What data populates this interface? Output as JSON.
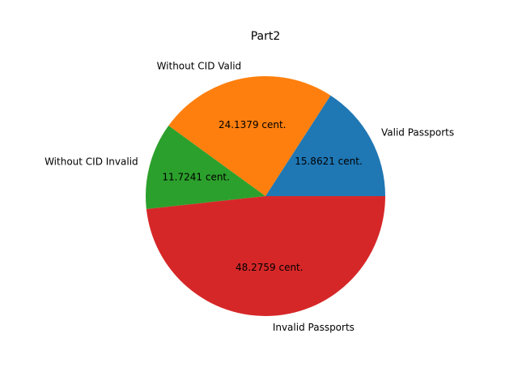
{
  "chart_data": {
    "type": "pie",
    "title": "Part2",
    "slices": [
      {
        "label": "Valid Passports",
        "value": 15.8621,
        "pct_label": "15.8621 cent.",
        "color": "#1f77b4"
      },
      {
        "label": "Without CID Valid",
        "value": 24.1379,
        "pct_label": "24.1379 cent.",
        "color": "#ff7f0e"
      },
      {
        "label": "Without CID Invalid",
        "value": 11.7241,
        "pct_label": "11.7241 cent.",
        "color": "#2ca02c"
      },
      {
        "label": "Invalid Passports",
        "value": 48.2759,
        "pct_label": "48.2759 cent.",
        "color": "#d62728"
      }
    ],
    "start_angle": 0,
    "direction": "counterclockwise",
    "legend": "none"
  }
}
